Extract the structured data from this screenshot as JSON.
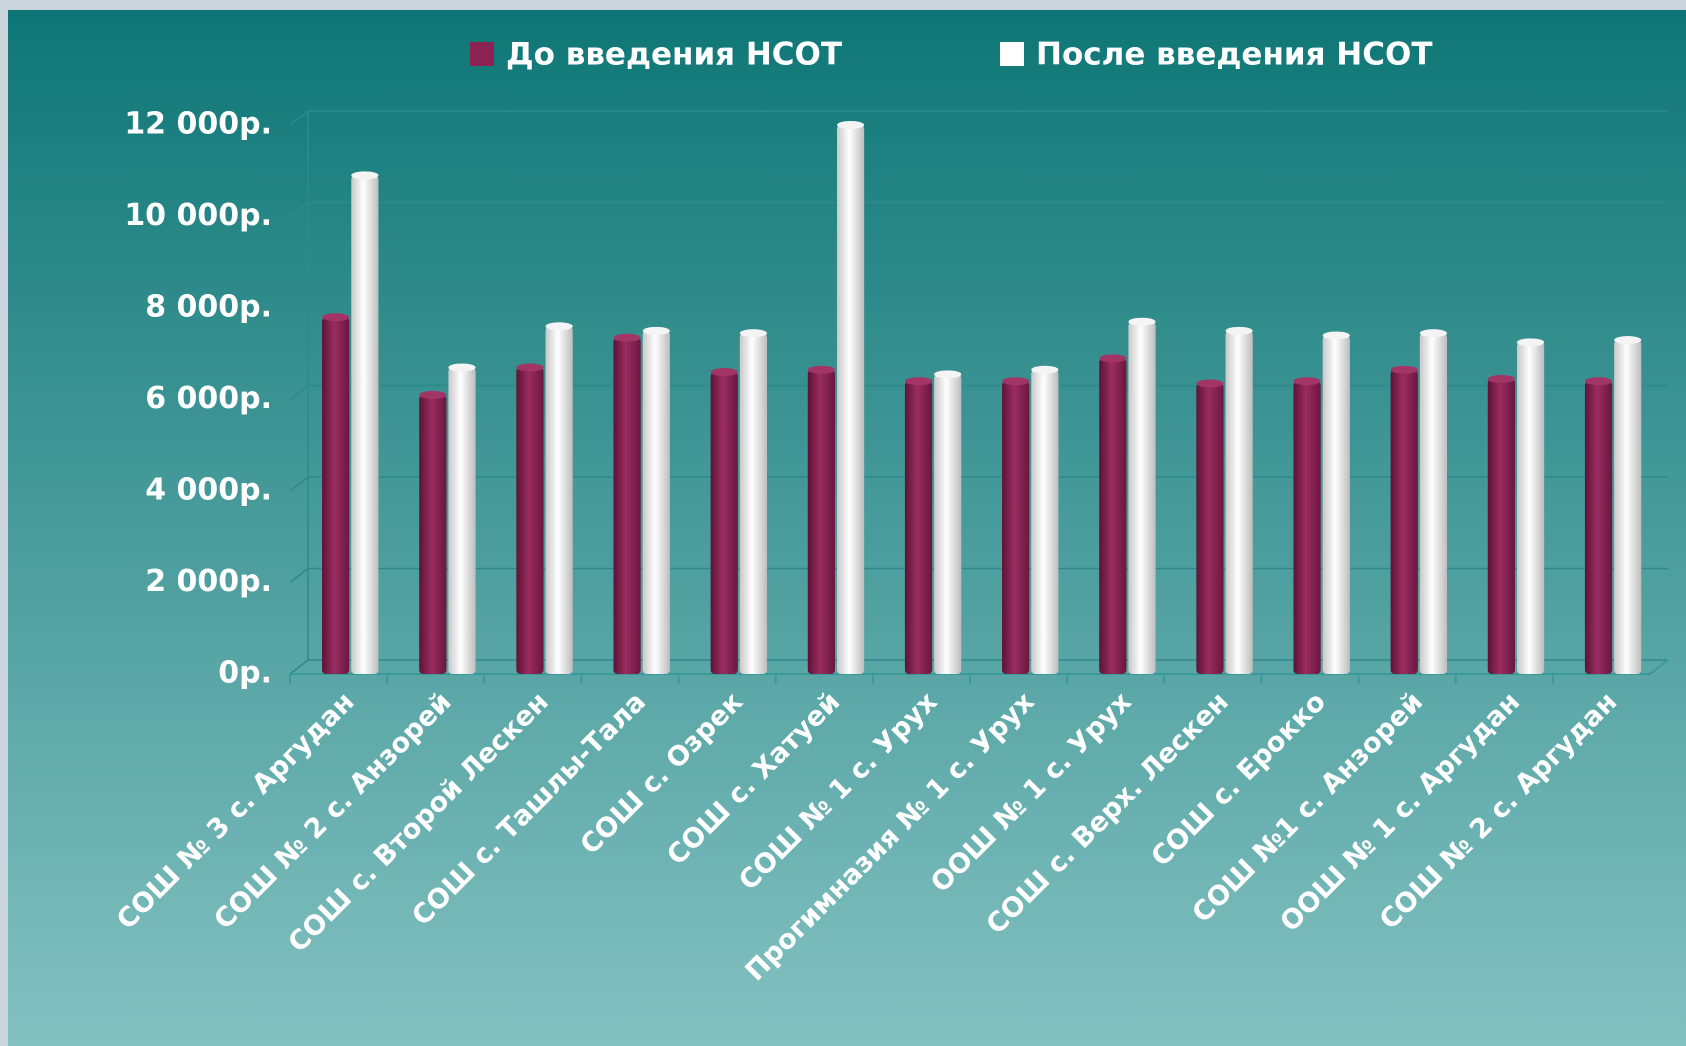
{
  "chart_data": {
    "type": "bar",
    "categories": [
      "СОШ № 3 с. Аргудан",
      "СОШ № 2 с. Анзорей",
      "СОШ с. Второй Лескен",
      "СОШ с. Ташлы-Тала",
      "СОШ с. Озрек",
      "СОШ с. Хатуей",
      "СОШ № 1 с. Урух",
      "Прогимназия № 1 с. Урух",
      "ООШ № 1 с. Урух",
      "СОШ с. Верх. Лескен",
      "СОШ с. Ерокко",
      "СОШ №1 с. Анзорей",
      "ООШ № 1 с. Аргудан",
      "СОШ № 2 с. Аргудан"
    ],
    "series": [
      {
        "name": "До введения НСОТ",
        "color": "#8b2252",
        "values": [
          7800,
          6100,
          6700,
          7350,
          6600,
          6650,
          6400,
          6400,
          6900,
          6350,
          6400,
          6650,
          6450,
          6400
        ]
      },
      {
        "name": "После введения НСОТ",
        "color": "#ffffff",
        "values": [
          10900,
          6700,
          7600,
          7500,
          7450,
          12000,
          6550,
          6650,
          7700,
          7500,
          7400,
          7450,
          7250,
          7300
        ]
      }
    ],
    "ylim": [
      0,
      12000
    ],
    "yticks": [
      {
        "value": 0,
        "label": "0р."
      },
      {
        "value": 2000,
        "label": "2 000р."
      },
      {
        "value": 4000,
        "label": "4 000р."
      },
      {
        "value": 6000,
        "label": "6 000р."
      },
      {
        "value": 8000,
        "label": "8 000р."
      },
      {
        "value": 10000,
        "label": "10 000р."
      },
      {
        "value": 12000,
        "label": "12 000р."
      }
    ],
    "grid": true,
    "legend": "top"
  }
}
